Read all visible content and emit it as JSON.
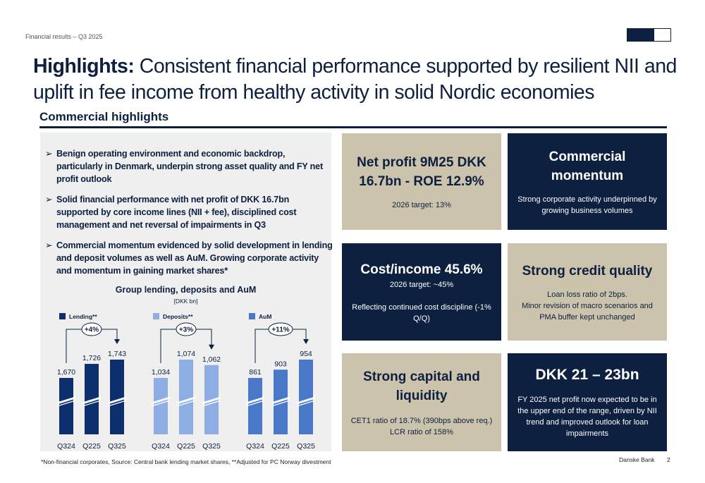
{
  "header": {
    "section_label": "Financial results – Q3 2025"
  },
  "title": {
    "bold": "Highlights:",
    "rest": "Consistent financial performance supported by resilient NII and uplift in fee income from healthy activity in solid Nordic economies"
  },
  "section": {
    "title": "Commercial highlights"
  },
  "bullets": [
    "Benign operating environment and economic backdrop, particularly in Denmark, underpin strong asset quality and FY net profit outlook",
    "Solid financial performance with net profit of DKK 16.7bn supported by core income lines (NII + fee), disciplined cost management and net reversal of impairments in Q3",
    "Commercial momentum evidenced by solid development in lending and deposit volumes as well as AuM. Growing corporate activity and momentum in gaining market shares*"
  ],
  "chart_data": {
    "type": "bar",
    "title": "Group lending, deposits and AuM",
    "subtitle": "[DKK bn]",
    "categories": [
      "Q324",
      "Q225",
      "Q325"
    ],
    "axis_break": true,
    "series": [
      {
        "name": "Lending**",
        "values": [
          1670,
          1726,
          1743
        ],
        "labels": [
          "1,670",
          "1,726",
          "1,743"
        ],
        "change": "+4%",
        "color": "#0d2f6e"
      },
      {
        "name": "Deposits**",
        "values": [
          1034,
          1074,
          1062
        ],
        "labels": [
          "1,034",
          "1,074",
          "1,062"
        ],
        "change": "+3%",
        "color": "#8eaee3"
      },
      {
        "name": "AuM",
        "values": [
          861,
          903,
          954
        ],
        "labels": [
          "861",
          "903",
          "954"
        ],
        "change": "+11%",
        "color": "#4a78c8"
      }
    ]
  },
  "cards": {
    "net_profit": {
      "headline": "Net profit 9M25 DKK 16.7bn - ROE 12.9%",
      "lines": [
        "2026 target: 13%"
      ]
    },
    "commercial": {
      "headline": "Commercial momentum",
      "lines": [
        "Strong corporate activity underpinned by growing business volumes"
      ]
    },
    "cost_income": {
      "headline": "Cost/income 45.6%",
      "lines": [
        "2026 target: ~45%",
        "",
        "Reflecting continued cost discipline (-1% Q/Q)"
      ]
    },
    "credit": {
      "headline": "Strong credit quality",
      "lines": [
        "Loan loss ratio of 2bps.",
        "Minor revision of macro scenarios and PMA buffer kept unchanged"
      ]
    },
    "capital": {
      "headline": "Strong capital and liquidity",
      "lines": [
        "CET1 ratio of 18.7% (390bps above req.)",
        "LCR ratio of 158%"
      ]
    },
    "outlook": {
      "headline": "DKK 21 – 23bn",
      "lines": [
        "FY 2025 net profit now expected to be in the upper end of the range, driven by NII trend and improved outlook for loan impairments"
      ]
    }
  },
  "footer": {
    "footnote": "*Non-financial corporates, Source: Central bank lending market shares, **Adjusted for PC Norway divestment",
    "brand": "Danske Bank",
    "page": "2"
  },
  "colors": {
    "navy": "#0d2040",
    "beige": "#ccc3ad",
    "panel": "#efefef"
  }
}
